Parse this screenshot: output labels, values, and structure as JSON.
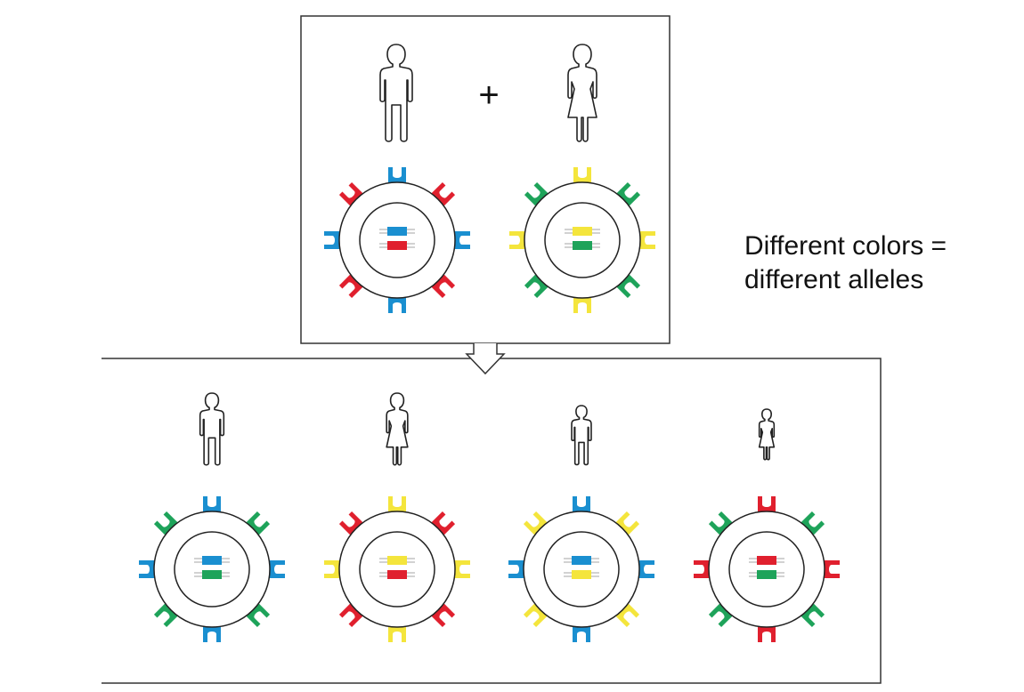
{
  "legend": {
    "line1": "Different colors =",
    "line2": "different alleles"
  },
  "operator": "+",
  "colors": {
    "blue": "#1a8fd0",
    "red": "#e0202e",
    "yellow": "#f4e53c",
    "green": "#1ea35a",
    "outline": "#222222"
  },
  "parents": [
    {
      "sex": "male",
      "alleles": [
        "blue",
        "red"
      ]
    },
    {
      "sex": "female",
      "alleles": [
        "yellow",
        "green"
      ]
    }
  ],
  "children": [
    {
      "sex": "male",
      "alleles": [
        "blue",
        "green"
      ]
    },
    {
      "sex": "female",
      "alleles": [
        "yellow",
        "red"
      ]
    },
    {
      "sex": "male",
      "alleles": [
        "blue",
        "yellow"
      ]
    },
    {
      "sex": "female",
      "alleles": [
        "red",
        "green"
      ]
    }
  ]
}
